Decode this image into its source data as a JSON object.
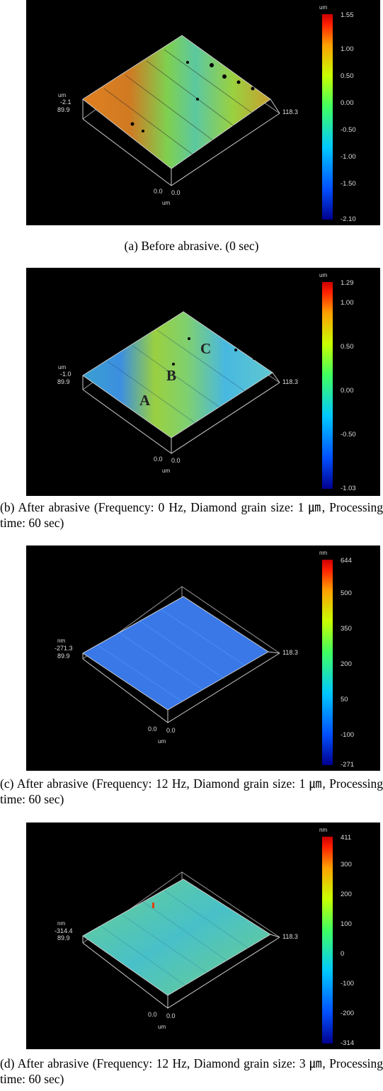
{
  "figures": [
    {
      "caption": "(a) Before abrasive. (0 sec)",
      "unit_z": "um",
      "unit_xy": "um",
      "z_min_label": "-2.1",
      "y_label": "89.9",
      "x_label": "118.3",
      "origin_x": "0.0",
      "origin_y": "0.0",
      "colorbar_unit": "um",
      "colorbar_ticks": [
        "1.55",
        "1.00",
        "0.50",
        "0.00",
        "-0.50",
        "-1.00",
        "-1.50",
        "-2.10"
      ],
      "surface_labels": []
    },
    {
      "caption": "(b) After abrasive (Frequency: 0 Hz, Diamond grain size: 1 ㎛, Processing time: 60 sec)",
      "unit_z": "um",
      "unit_xy": "um",
      "z_min_label": "-1.0",
      "y_label": "89.9",
      "x_label": "118.3",
      "origin_x": "0.0",
      "origin_y": "0.0",
      "colorbar_unit": "um",
      "colorbar_ticks": [
        "1.29",
        "1.00",
        "0.50",
        "0.00",
        "-0.50",
        "-1.03"
      ],
      "surface_labels": [
        "A",
        "B",
        "C"
      ]
    },
    {
      "caption": "(c) After abrasive (Frequency: 12 Hz, Diamond grain size: 1 ㎛, Processing time: 60 sec)",
      "unit_z": "nm",
      "unit_xy": "um",
      "z_min_label": "-271.3",
      "y_label": "89.9",
      "x_label": "118.3",
      "origin_x": "0.0",
      "origin_y": "0.0",
      "colorbar_unit": "nm",
      "colorbar_ticks": [
        "644",
        "500",
        "350",
        "200",
        "50",
        "-100",
        "-271"
      ],
      "surface_labels": []
    },
    {
      "caption": "(d) After abrasive (Frequency: 12 Hz, Diamond grain size: 3 ㎛, Processing time: 60 sec)",
      "unit_z": "nm",
      "unit_xy": "um",
      "z_min_label": "-314.4",
      "y_label": "89.9",
      "x_label": "118.3",
      "origin_x": "0.0",
      "origin_y": "0.0",
      "colorbar_unit": "nm",
      "colorbar_ticks": [
        "411",
        "300",
        "200",
        "100",
        "0",
        "-100",
        "-200",
        "-314"
      ],
      "surface_labels": []
    }
  ],
  "colors": {
    "colormap": [
      "#00008f",
      "#0050ff",
      "#00c8ff",
      "#40ff60",
      "#c8ff00",
      "#ffa000",
      "#ff2000",
      "#cc0000"
    ]
  }
}
